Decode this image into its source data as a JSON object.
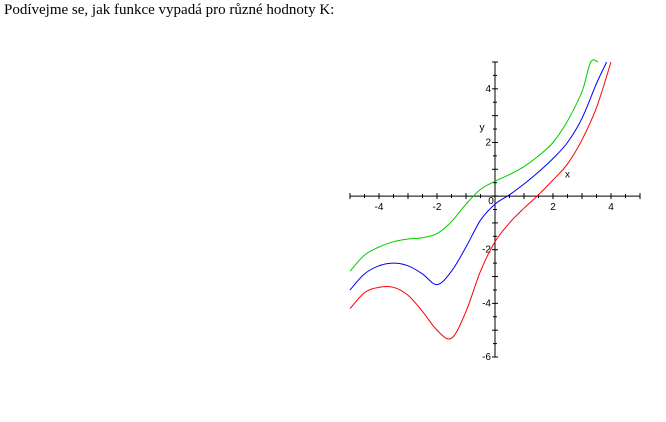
{
  "page": {
    "intro_text": "Podívejme se, jak funkce vypadá pro různé hodnoty K:"
  },
  "chart_data": {
    "type": "line",
    "title": "",
    "xlabel": "x",
    "ylabel": "y",
    "xlim": [
      -5,
      5
    ],
    "ylim": [
      -6,
      5
    ],
    "x_ticks": [
      -4,
      -2,
      0,
      2,
      4
    ],
    "y_ticks": [
      4,
      2,
      -2,
      -4,
      -6
    ],
    "x_tick_labels": [
      "-4",
      "-2",
      "0",
      "2",
      "4"
    ],
    "y_tick_labels": [
      "4",
      "2",
      "-2",
      "-4",
      "-6"
    ],
    "grid": false,
    "legend": "none",
    "series": [
      {
        "color": "#00cc00",
        "x": [
          -5,
          -4.5,
          -4,
          -3.5,
          -3,
          -2.5,
          -2,
          -1.5,
          -1,
          -0.5,
          0,
          0.5,
          1,
          1.5,
          2,
          2.5,
          3,
          3.3,
          3.55
        ],
        "y": [
          -2.8,
          -2.2,
          -1.9,
          -1.7,
          -1.6,
          -1.55,
          -1.4,
          -0.95,
          -0.3,
          0.25,
          0.55,
          0.8,
          1.1,
          1.5,
          2.0,
          2.8,
          3.9,
          5.0,
          5.0
        ]
      },
      {
        "color": "#0000ff",
        "x": [
          -5,
          -4.5,
          -4,
          -3.5,
          -3,
          -2.5,
          -2,
          -1.5,
          -1,
          -0.5,
          0,
          0.5,
          1,
          1.5,
          2,
          2.5,
          3,
          3.5,
          3.85
        ],
        "y": [
          -3.5,
          -2.9,
          -2.6,
          -2.5,
          -2.6,
          -2.9,
          -3.3,
          -2.8,
          -1.9,
          -0.9,
          -0.3,
          0.05,
          0.45,
          0.9,
          1.4,
          2.0,
          2.9,
          4.2,
          5.0
        ]
      },
      {
        "color": "#ff0000",
        "x": [
          -5,
          -4.5,
          -4,
          -3.5,
          -3,
          -2.5,
          -2,
          -1.5,
          -1,
          -0.5,
          0,
          0.5,
          1,
          1.5,
          2,
          2.5,
          3,
          3.5,
          4.0
        ],
        "y": [
          -4.2,
          -3.6,
          -3.4,
          -3.4,
          -3.7,
          -4.3,
          -5.0,
          -5.3,
          -4.3,
          -2.8,
          -1.7,
          -1.0,
          -0.45,
          0.05,
          0.6,
          1.2,
          2.1,
          3.3,
          5.0
        ]
      }
    ]
  }
}
